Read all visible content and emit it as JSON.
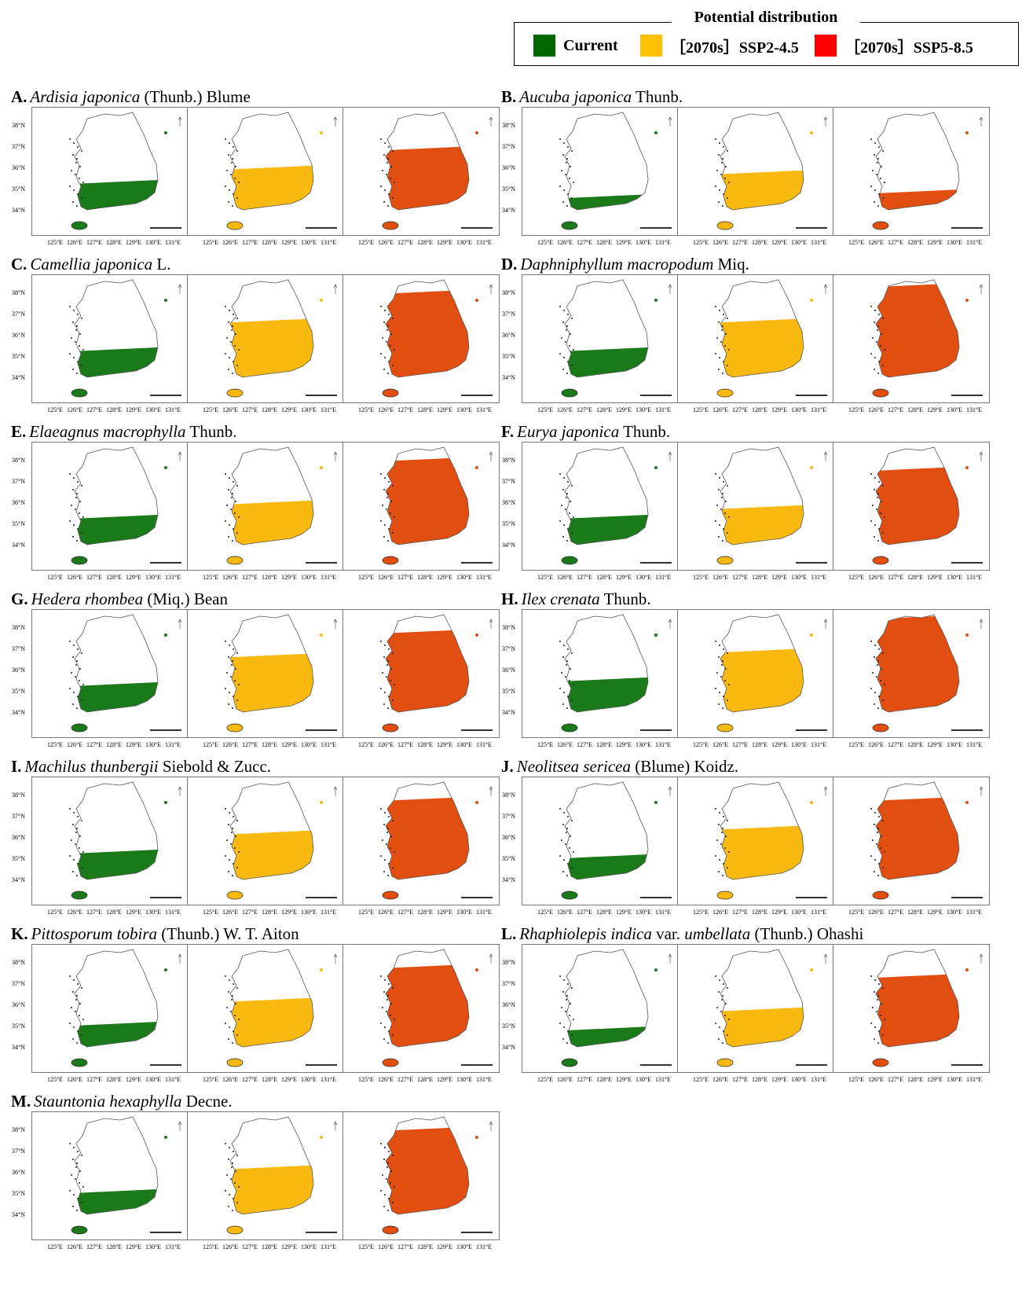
{
  "legend": {
    "title": "Potential distribution",
    "items": [
      {
        "label": "Current",
        "color": "#006600"
      },
      {
        "label": "［2070s］SSP2-4.5",
        "color": "#FFC000"
      },
      {
        "label": "［2070s］SSP5-8.5",
        "color": "#FF0000"
      }
    ]
  },
  "map_colors": {
    "current": "#1a7a1a",
    "ssp245": "#F9B90F",
    "ssp585": "#E24E0F"
  },
  "lat_labels": [
    "38°N",
    "37°N",
    "36°N",
    "35°N",
    "34°N"
  ],
  "lon_labels": [
    "125°E",
    "126°E",
    "127°E",
    "128°E",
    "129°E",
    "130°E",
    "131°E"
  ],
  "panels": [
    {
      "letter": "A.",
      "species": "Ardisia japonica",
      "author": "(Thunb.) Blume",
      "extent": {
        "current": 0.25,
        "ssp245": 0.4,
        "ssp585": 0.6
      }
    },
    {
      "letter": "B.",
      "species": "Aucuba japonica",
      "author": "Thunb.",
      "extent": {
        "current": 0.1,
        "ssp245": 0.35,
        "ssp585": 0.15
      }
    },
    {
      "letter": "C.",
      "species": "Camellia japonica",
      "author": "L.",
      "extent": {
        "current": 0.25,
        "ssp245": 0.55,
        "ssp585": 0.85
      }
    },
    {
      "letter": "D.",
      "species": "Daphniphyllum macropodum",
      "author": "Miq.",
      "extent": {
        "current": 0.25,
        "ssp245": 0.55,
        "ssp585": 0.92
      }
    },
    {
      "letter": "E.",
      "species": "Elaeagnus macrophylla",
      "author": "Thunb.",
      "extent": {
        "current": 0.25,
        "ssp245": 0.4,
        "ssp585": 0.85
      }
    },
    {
      "letter": "F.",
      "species": "Eurya japonica",
      "author": "Thunb.",
      "extent": {
        "current": 0.25,
        "ssp245": 0.35,
        "ssp585": 0.75
      }
    },
    {
      "letter": "G.",
      "species": "Hedera rhombea",
      "author": "(Miq.) Bean",
      "extent": {
        "current": 0.25,
        "ssp245": 0.55,
        "ssp585": 0.8
      }
    },
    {
      "letter": "H.",
      "species": "Ilex crenata",
      "author": "Thunb.",
      "extent": {
        "current": 0.3,
        "ssp245": 0.6,
        "ssp585": 0.95
      }
    },
    {
      "letter": "I.",
      "species": "Machilus thunbergii",
      "author": "Siebold & Zucc.",
      "extent": {
        "current": 0.25,
        "ssp245": 0.45,
        "ssp585": 0.8
      }
    },
    {
      "letter": "J.",
      "species": "Neolitsea sericea",
      "author": "(Blume) Koidz.",
      "extent": {
        "current": 0.2,
        "ssp245": 0.5,
        "ssp585": 0.8
      }
    },
    {
      "letter": "K.",
      "species": "Pittosporum tobira",
      "author": "(Thunb.) W. T. Aiton",
      "extent": {
        "current": 0.2,
        "ssp245": 0.45,
        "ssp585": 0.8
      }
    },
    {
      "letter": "L.",
      "species": "Rhaphiolepis indica",
      "mid": "var.",
      "species2": "umbellata",
      "author": "(Thunb.) Ohashi",
      "extent": {
        "current": 0.15,
        "ssp245": 0.35,
        "ssp585": 0.7
      }
    },
    {
      "letter": "M.",
      "species": "Stauntonia hexaphylla",
      "author": "Decne.",
      "extent": {
        "current": 0.2,
        "ssp245": 0.45,
        "ssp585": 0.85
      }
    }
  ]
}
